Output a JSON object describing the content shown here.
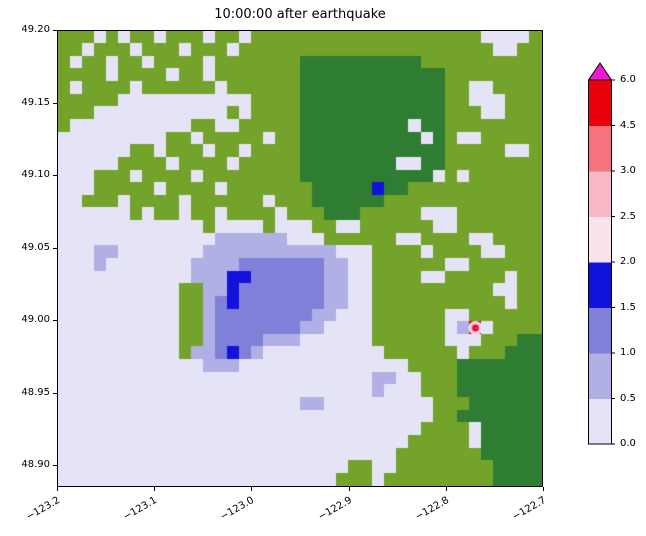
{
  "title": "10:00:00 after earthquake",
  "axes": {
    "y_tick_labels": [
      "49.20",
      "49.15",
      "49.10",
      "49.05",
      "49.00",
      "48.95",
      "48.90"
    ],
    "x_tick_labels": [
      "−123.2",
      "−123.1",
      "−123.0",
      "−122.9",
      "−122.8",
      "−122.7"
    ]
  },
  "colorbar_labels_top_to_bottom": [
    "6.0",
    "4.5",
    "3.0",
    "2.5",
    "2.0",
    "1.5",
    "1.0",
    "0.5",
    "0.0"
  ],
  "chart_data": {
    "type": "heatmap",
    "title": "10:00:00 after earthquake",
    "xlabel": "",
    "ylabel": "",
    "x_range": [
      -123.2,
      -122.7
    ],
    "y_range": [
      48.885,
      49.2
    ],
    "x_tick_values": [
      -123.2,
      -123.1,
      -123.0,
      -122.9,
      -122.8,
      -122.7
    ],
    "y_tick_values": [
      49.2,
      49.15,
      49.1,
      49.05,
      49.0,
      48.95,
      48.9
    ],
    "grid_on": false,
    "colorbar": {
      "orientation": "vertical",
      "extend": "max",
      "boundaries": [
        0.0,
        0.5,
        1.0,
        1.5,
        2.0,
        2.5,
        3.0,
        4.5,
        6.0
      ],
      "colors_bottom_to_top": [
        "#e4e4f6",
        "#b0b0e4",
        "#8080d8",
        "#1212dd",
        "#fbe3ea",
        "#f8b7c5",
        "#f4737f",
        "#e8000b"
      ],
      "over_color": "#f218d2",
      "outline_color": "#000000"
    },
    "grid": {
      "cols": 40,
      "rows": 36,
      "palette": {
        "g": "#74a32b",
        "d": "#2e7d32",
        "w": "#e4e4f6",
        "p": "#b0b0e4",
        "b": "#8080d8",
        "n": "#1212dd",
        "r": "#e8000b"
      },
      "legend": {
        "g": "land green",
        "d": "dark green forest",
        "w": "depth 0.0-0.5",
        "p": "depth 0.5-1.0",
        "b": "depth 1.0-1.5",
        "n": "depth 1.5-2.0",
        "r": "depth 4.5-6.0"
      },
      "rows_top_to_bottom": [
        "gggwgwggwgggwggwggggggggggggggggggguwwwg",
        "ggwgggwgggwgggwgggggggggggggggggggggwwgg",
        "gwggwggwggggwgggggggdddddddddd gggggggggg",
        "ggggwggggwggwgggggggddddddddddddgggggggg",
        "gwggggwggggggwggggggddddddddddddggwwgggg",
        "gggggwwwwwwwwwwwggggddddddddddddggwwwggg",
        "gggwwwwwwwwwwwgwggggddddddddddddgggwwggg",
        "gwwwwwwwwwwggwwgggggdddddddddwddgggggggg",
        "wwwwwwwwwggwgggggwggddddddddddwdgwwggggg",
        "wwwwwwggwgggwggwggggddddddddddddgggggwwg",
        "wwwwwggggwggggwgggggddddddddwwddgggggggg",
        "wwwgggwggggwggggggggdddddddddddwgwgggggg",
        "wwwgggggwggggwgggggggdddddnddggggggggggg",
        "wwgggwggggwggggggwgggddddddggggggggggggg",
        "wwwwwwgwggwggwggggwgggdddgggggwwwgggggggg",
        "wwwwwwwwwwwwgwwwwgwwwggwwggggggwwggggggg",
        "wwwwwwwwwwwwwppppppwwwggggggwwggggwwgggg",
        "wwwppwwwwwwwpppppppppppwwwggggwggggwwggg",
        "wwwpwwwwwwwppppbbbbbbbppwwggggggwwgggggg",
        "wwwwwwwwwwwpppnnbbbbbbppwwggggwwgggggwgg",
        "wwwwwwwwwwggppnbbbbbbbppwwggggggggggwwgg",
        "wwwwwwwwwwggpbnbbbbbbbppwwgggggggggggwgg",
        "wwwwwwwwwwggpbbbbbbbbppwwwggggggwwggggg g",
        "wwwwwwwwwwggpbbbbbbbppwwwwggggggwprwgggg",
        "wwwwwwwwwwggpbbbbpppwwwwwwggggggwwwgggdd",
        "wwwwwwwwwwgppbnbpwwwwwwwwwwggggggwgggddd",
        "wwwwwwwwwwwwpppwwwwwwwwwwwwwwggggddddddd",
        "wwwwwwwwwwwwwwwwwwwwwwwwwwppwwgggddddddd",
        "wwwwwwwwwwwwwwwwwwwwwwwwwwpwwwgggddddddd",
        "wwwwwwwwwwwwwwwwwwwwppwwwwwwwwwgggdddddd",
        "wwwwwwwwwwwwwwwwwwwwwwwwwwwwwwwggddddddd",
        "wwwwwwwwwwwwwwwwwwwwwwwwwwwwwwggggwddddd",
        "wwwwwwwwwwwwwwwwwwwwwwwwwwwwwgggggwddddd",
        "wwwwwwwwwwwwwwwwwwwwwwwwwwwwgggggggddddd",
        "wwwwwwwwwwwwwwwwwwwwwwwwggwwggggggggdddd",
        "wwwwwwwwwwwwwwwwwwwwwwwgggwggggggggg dddd"
      ]
    },
    "hotspot": {
      "col": 34.5,
      "row": 23.5,
      "rings": [
        {
          "r": 7,
          "color": "#e4e4f6"
        },
        {
          "r": 5,
          "color": "#f8b7c5"
        },
        {
          "r": 3.2,
          "color": "#e8000b"
        },
        {
          "r": 1.6,
          "color": "#f218d2"
        }
      ]
    }
  }
}
